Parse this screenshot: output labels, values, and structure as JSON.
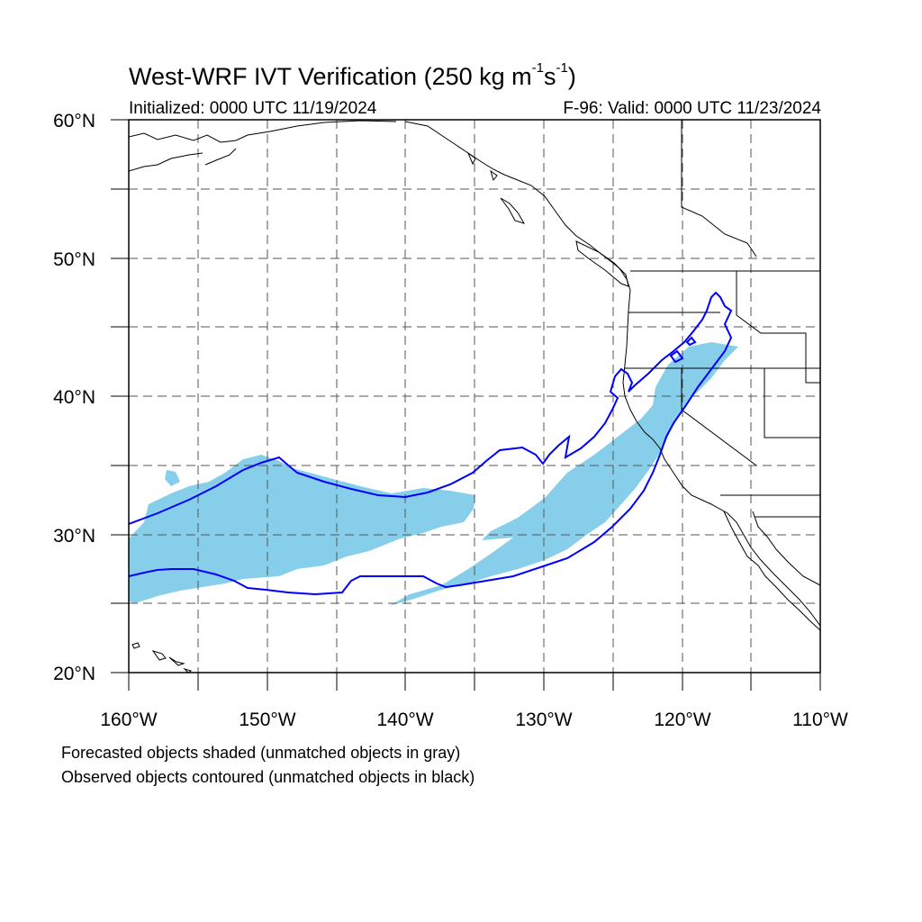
{
  "title": {
    "main": "West-WRF IVT Verification (250 kg m",
    "sup1": "-1",
    "mid": "s",
    "sup2": "-1",
    "end": ")"
  },
  "subtitle_left": "Initialized: 0000 UTC 11/19/2024",
  "subtitle_right": "F-96: Valid: 0000 UTC 11/23/2024",
  "captions": [
    "Forecasted objects shaded (unmatched objects in gray)",
    "Observed objects contoured (unmatched objects in black)"
  ],
  "axes": {
    "lon_labels": [
      "160°W",
      "150°W",
      "140°W",
      "130°W",
      "120°W",
      "110°W"
    ],
    "lat_labels": [
      "60°N",
      "50°N",
      "40°N",
      "30°N",
      "20°N"
    ]
  },
  "map": {
    "lon_range": [
      -160,
      -110
    ],
    "lat_range": [
      20,
      60
    ],
    "grid_lines": "dashed every 5°",
    "colors": {
      "forecast_fill": "#87ceeb",
      "observed_contour": "#0000ff",
      "coastline": "#000000",
      "grid": "#555555"
    }
  }
}
